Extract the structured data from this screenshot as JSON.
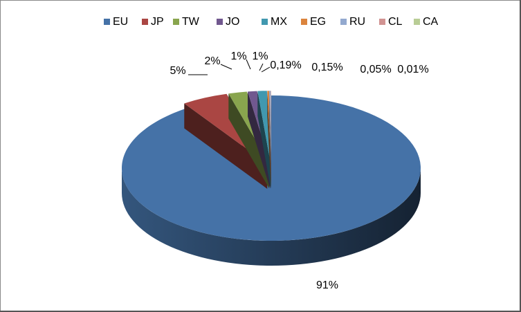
{
  "chart_data": {
    "type": "pie",
    "three_d": true,
    "legend": "top",
    "categories": [
      "EU",
      "JP",
      "TW",
      "JO",
      "MX",
      "EG",
      "RU",
      "CL",
      "CA"
    ],
    "values": [
      91,
      5,
      2,
      1,
      1,
      0.19,
      0.15,
      0.05,
      0.01
    ],
    "value_labels": [
      "91%",
      "5%",
      "2%",
      "1%",
      "1%",
      "0,19%",
      "0,15%",
      "0,05%",
      "0,01%"
    ],
    "colors": [
      "#4572a7",
      "#aa4643",
      "#89a54e",
      "#71588f",
      "#4198af",
      "#db843d",
      "#93a9cf",
      "#d19392",
      "#b9cd96"
    ]
  }
}
